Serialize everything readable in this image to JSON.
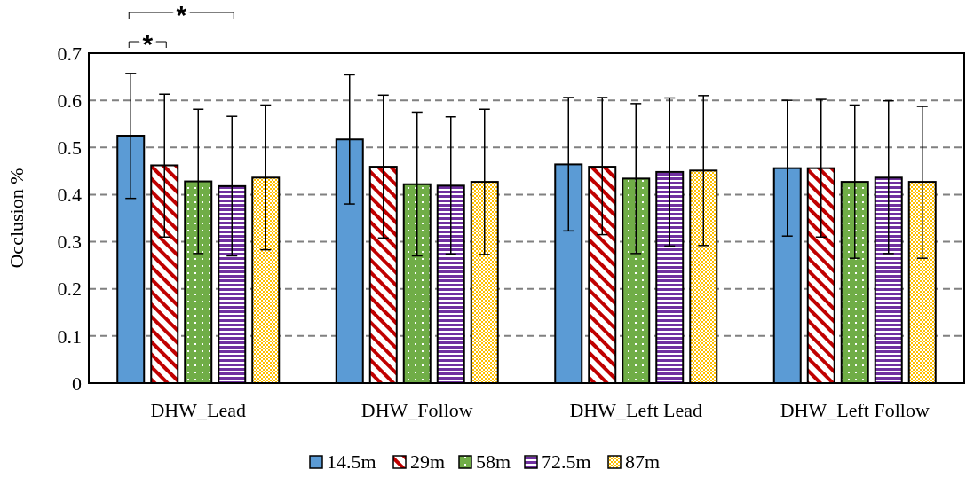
{
  "chart_data": {
    "type": "bar",
    "ylabel": "Occlusion %",
    "categories": [
      "DHW_Lead",
      "DHW_Follow",
      "DHW_Left Lead",
      "DHW_Left Follow"
    ],
    "series": [
      {
        "name": "14.5m",
        "color": "#5b9bd5",
        "values": [
          0.525,
          0.517,
          0.464,
          0.456
        ],
        "errors": [
          [
            0.392,
            0.657
          ],
          [
            0.38,
            0.654
          ],
          [
            0.323,
            0.606
          ],
          [
            0.312,
            0.6
          ]
        ]
      },
      {
        "name": "29m",
        "color": "#c00000",
        "values": [
          0.462,
          0.459,
          0.459,
          0.456
        ],
        "errors": [
          [
            0.31,
            0.613
          ],
          [
            0.308,
            0.611
          ],
          [
            0.315,
            0.606
          ],
          [
            0.31,
            0.602
          ]
        ]
      },
      {
        "name": "58m",
        "color": "#70ad47",
        "values": [
          0.428,
          0.422,
          0.434,
          0.427
        ],
        "errors": [
          [
            0.275,
            0.581
          ],
          [
            0.27,
            0.575
          ],
          [
            0.275,
            0.593
          ],
          [
            0.265,
            0.59
          ]
        ]
      },
      {
        "name": "72.5m",
        "color": "#7030a0",
        "values": [
          0.418,
          0.419,
          0.448,
          0.436
        ],
        "errors": [
          [
            0.27,
            0.566
          ],
          [
            0.274,
            0.565
          ],
          [
            0.291,
            0.605
          ],
          [
            0.275,
            0.599
          ]
        ]
      },
      {
        "name": "87m",
        "color": "#ffc000",
        "values": [
          0.436,
          0.427,
          0.451,
          0.427
        ],
        "errors": [
          [
            0.283,
            0.59
          ],
          [
            0.273,
            0.581
          ],
          [
            0.292,
            0.61
          ],
          [
            0.265,
            0.587
          ]
        ]
      }
    ],
    "ylim": [
      0,
      0.7
    ],
    "yticks": [
      0,
      0.1,
      0.2,
      0.3,
      0.4,
      0.5,
      0.6,
      0.7
    ],
    "grid": "y",
    "legend": "bottom",
    "annotations": [
      "*",
      "*"
    ]
  }
}
